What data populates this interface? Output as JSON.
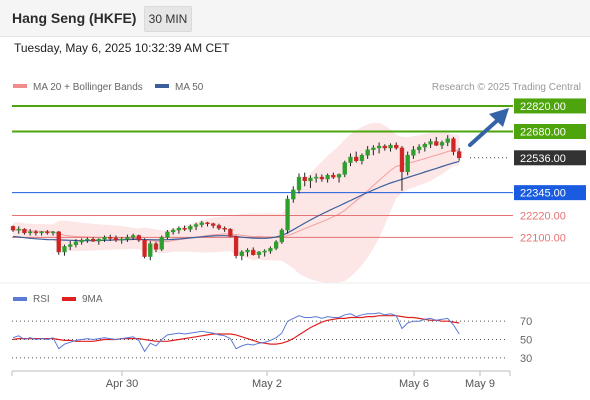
{
  "header": {
    "instrument": "Hang Seng (HKFE)",
    "timeframe": "30 MIN",
    "datetime": "Tuesday, May 6, 2025 10:32:39 AM CET"
  },
  "legend": {
    "bollinger_label": "MA 20 + Bollinger Bands",
    "ma50_label": "MA 50",
    "credit": "Research © 2025 Trading Central"
  },
  "colors": {
    "resistance": "#4ea40c",
    "support": "#1a5ce0",
    "minor_level": "#e57373",
    "last_price": "#333333",
    "bollinger": "#f28b8b",
    "ma50": "#3a5f9a",
    "arrow": "#3563a8",
    "rsi": "#5b7ad6",
    "rsi_ma": "#e02020",
    "candle_up": "#2e9e2e",
    "candle_down": "#d02525"
  },
  "levels": [
    {
      "value": "22820.00",
      "kind": "resistance"
    },
    {
      "value": "22680.00",
      "kind": "resistance"
    },
    {
      "value": "22536.00",
      "kind": "last"
    },
    {
      "value": "22345.00",
      "kind": "support"
    },
    {
      "value": "22220.00",
      "kind": "minor"
    },
    {
      "value": "22100.00",
      "kind": "minor"
    }
  ],
  "chart_data": {
    "type": "candlestick",
    "x_ticks": [
      "Apr 30",
      "May 2",
      "May 6",
      "May 9"
    ],
    "price_range": [
      21850,
      22880
    ],
    "candles": [
      [
        22160,
        22165,
        22130,
        22140
      ],
      [
        22140,
        22160,
        22120,
        22145
      ],
      [
        22145,
        22150,
        22115,
        22125
      ],
      [
        22125,
        22145,
        22110,
        22130
      ],
      [
        22130,
        22140,
        22110,
        22125
      ],
      [
        22125,
        22135,
        22110,
        22130
      ],
      [
        22130,
        22140,
        22115,
        22125
      ],
      [
        22125,
        22135,
        22110,
        22130
      ],
      [
        22130,
        22135,
        22005,
        22020
      ],
      [
        22020,
        22060,
        22000,
        22050
      ],
      [
        22050,
        22080,
        22030,
        22060
      ],
      [
        22060,
        22090,
        22045,
        22075
      ],
      [
        22075,
        22095,
        22060,
        22085
      ],
      [
        22085,
        22100,
        22070,
        22090
      ],
      [
        22090,
        22100,
        22075,
        22080
      ],
      [
        22080,
        22095,
        22060,
        22090
      ],
      [
        22090,
        22110,
        22075,
        22100
      ],
      [
        22100,
        22115,
        22080,
        22095
      ],
      [
        22095,
        22110,
        22075,
        22085
      ],
      [
        22085,
        22100,
        22065,
        22090
      ],
      [
        22090,
        22115,
        22075,
        22100
      ],
      [
        22100,
        22120,
        22085,
        22110
      ],
      [
        22110,
        22115,
        22075,
        22085
      ],
      [
        22085,
        22095,
        21985,
        21995
      ],
      [
        21995,
        22080,
        21975,
        22065
      ],
      [
        22065,
        22075,
        22020,
        22035
      ],
      [
        22035,
        22110,
        22025,
        22100
      ],
      [
        22100,
        22140,
        22090,
        22130
      ],
      [
        22130,
        22150,
        22115,
        22140
      ],
      [
        22140,
        22160,
        22120,
        22150
      ],
      [
        22150,
        22165,
        22135,
        22145
      ],
      [
        22145,
        22170,
        22130,
        22160
      ],
      [
        22160,
        22180,
        22140,
        22170
      ],
      [
        22170,
        22190,
        22155,
        22180
      ],
      [
        22180,
        22185,
        22160,
        22175
      ],
      [
        22175,
        22180,
        22150,
        22165
      ],
      [
        22165,
        22175,
        22140,
        22150
      ],
      [
        22150,
        22160,
        22130,
        22145
      ],
      [
        22145,
        22150,
        22100,
        22105
      ],
      [
        22105,
        22110,
        21985,
        22000
      ],
      [
        22000,
        22030,
        21975,
        22020
      ],
      [
        22020,
        22040,
        21995,
        22030
      ],
      [
        22030,
        22045,
        22000,
        22005
      ],
      [
        22005,
        22025,
        21985,
        22020
      ],
      [
        22020,
        22035,
        21995,
        22025
      ],
      [
        22025,
        22050,
        22010,
        22040
      ],
      [
        22040,
        22085,
        22030,
        22075
      ],
      [
        22075,
        22150,
        22065,
        22140
      ],
      [
        22140,
        22330,
        22120,
        22310
      ],
      [
        22310,
        22380,
        22290,
        22360
      ],
      [
        22360,
        22450,
        22340,
        22430
      ],
      [
        22430,
        22455,
        22380,
        22410
      ],
      [
        22410,
        22440,
        22370,
        22425
      ],
      [
        22425,
        22450,
        22400,
        22430
      ],
      [
        22430,
        22445,
        22405,
        22420
      ],
      [
        22420,
        22450,
        22400,
        22440
      ],
      [
        22440,
        22455,
        22420,
        22430
      ],
      [
        22430,
        22450,
        22400,
        22445
      ],
      [
        22445,
        22520,
        22430,
        22510
      ],
      [
        22510,
        22560,
        22490,
        22540
      ],
      [
        22540,
        22570,
        22510,
        22520
      ],
      [
        22520,
        22560,
        22500,
        22550
      ],
      [
        22550,
        22600,
        22530,
        22580
      ],
      [
        22580,
        22605,
        22550,
        22590
      ],
      [
        22590,
        22620,
        22560,
        22600
      ],
      [
        22600,
        22610,
        22575,
        22590
      ],
      [
        22590,
        22615,
        22570,
        22605
      ],
      [
        22605,
        22620,
        22580,
        22590
      ],
      [
        22590,
        22600,
        22355,
        22460
      ],
      [
        22460,
        22570,
        22440,
        22550
      ],
      [
        22550,
        22600,
        22530,
        22580
      ],
      [
        22580,
        22610,
        22560,
        22595
      ],
      [
        22595,
        22620,
        22570,
        22610
      ],
      [
        22610,
        22640,
        22590,
        22625
      ],
      [
        22625,
        22650,
        22600,
        22605
      ],
      [
        22605,
        22630,
        22585,
        22620
      ],
      [
        22620,
        22660,
        22600,
        22640
      ],
      [
        22640,
        22650,
        22550,
        22570
      ],
      [
        22570,
        22590,
        22520,
        22536
      ]
    ],
    "ma50": [
      22105,
      22102,
      22098,
      22095,
      22092,
      22090,
      22088,
      22087,
      22086,
      22085,
      22084,
      22083,
      22082,
      22082,
      22082,
      22083,
      22084,
      22085,
      22086,
      22087,
      22088,
      22089,
      22089,
      22088,
      22087,
      22086,
      22086,
      22087,
      22089,
      22091,
      22094,
      22097,
      22100,
      22103,
      22106,
      22108,
      22109,
      22109,
      22108,
      22105,
      22101,
      22098,
      22096,
      22095,
      22095,
      22097,
      22102,
      22110,
      22125,
      22142,
      22160,
      22178,
      22195,
      22212,
      22228,
      22243,
      22258,
      22272,
      22287,
      22302,
      22317,
      22332,
      22346,
      22360,
      22373,
      22386,
      22398,
      22408,
      22418,
      22428,
      22438,
      22448,
      22458,
      22468,
      22478,
      22488,
      22498,
      22508,
      22516
    ],
    "rsi": {
      "ticks": [
        "70",
        "50",
        "30"
      ],
      "range": [
        20,
        80
      ],
      "values": [
        52,
        54,
        50,
        52,
        50,
        51,
        50,
        52,
        40,
        45,
        47,
        49,
        50,
        51,
        50,
        51,
        52,
        51,
        50,
        51,
        52,
        53,
        49,
        37,
        46,
        43,
        50,
        55,
        56,
        57,
        56,
        57,
        58,
        59,
        58,
        57,
        55,
        54,
        51,
        40,
        43,
        45,
        44,
        46,
        47,
        49,
        52,
        57,
        70,
        73,
        76,
        74,
        74,
        75,
        73,
        75,
        74,
        74,
        77,
        78,
        75,
        77,
        78,
        78,
        79,
        77,
        78,
        76,
        62,
        68,
        70,
        70,
        72,
        73,
        71,
        72,
        73,
        66,
        56
      ],
      "ma9": [
        50,
        51,
        51,
        51,
        51,
        51,
        51,
        51,
        50,
        49,
        49,
        48,
        48,
        48,
        48,
        49,
        50,
        50,
        50,
        51,
        51,
        51,
        51,
        50,
        49,
        48,
        48,
        48,
        49,
        50,
        51,
        52,
        53,
        54,
        55,
        56,
        56,
        56,
        56,
        55,
        53,
        51,
        49,
        47,
        46,
        45,
        45,
        46,
        48,
        51,
        55,
        59,
        63,
        66,
        69,
        71,
        72,
        73,
        73,
        74,
        74,
        74,
        75,
        75,
        76,
        76,
        76,
        76,
        75,
        74,
        74,
        73,
        72,
        71,
        71,
        70,
        70,
        69,
        68
      ]
    }
  }
}
